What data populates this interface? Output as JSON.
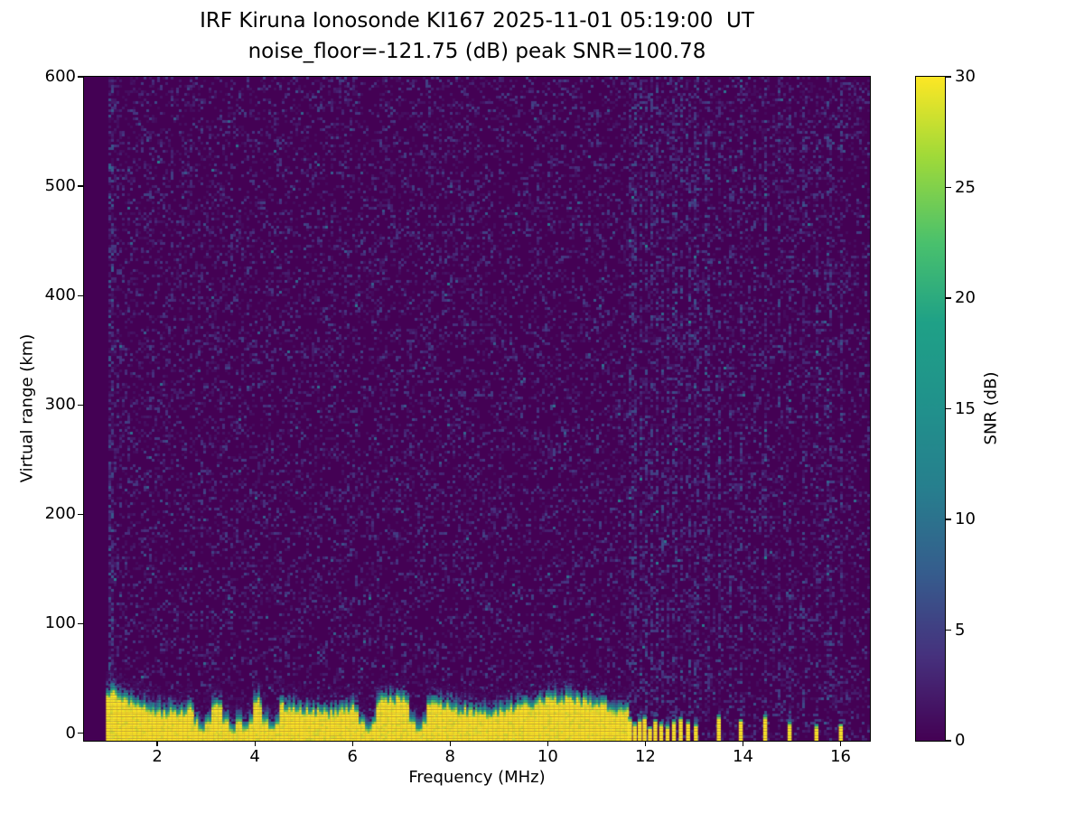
{
  "title": {
    "line1": "IRF Kiruna Ionosonde KI167 2025-11-01 05:19:00  UT",
    "line2": "noise_floor=-121.75 (dB) peak SNR=100.78"
  },
  "axes": {
    "xlabel": "Frequency (MHz)",
    "ylabel": "Virtual range (km)",
    "x_ticks": [
      2,
      4,
      6,
      8,
      10,
      12,
      14,
      16
    ],
    "y_ticks": [
      0,
      100,
      200,
      300,
      400,
      500,
      600
    ]
  },
  "colorbar": {
    "label": "SNR (dB)",
    "ticks": [
      0,
      5,
      10,
      15,
      20,
      25,
      30
    ],
    "min": 0,
    "max": 30
  },
  "chart_data": {
    "type": "heatmap",
    "title": "IRF Kiruna Ionosonde KI167 2025-11-01 05:19:00 UT",
    "subtitle": "noise_floor=-121.75 (dB) peak SNR=100.78",
    "xlabel": "Frequency (MHz)",
    "ylabel": "Virtual range (km)",
    "zlabel": "SNR (dB)",
    "x_range_mhz": [
      0.5,
      16.6
    ],
    "y_range_km": [
      -7,
      600
    ],
    "z_range_db": [
      0,
      30
    ],
    "colormap": "viridis",
    "colormap_stops": [
      {
        "t": 0.0,
        "c": "#440154"
      },
      {
        "t": 0.13,
        "c": "#46327e"
      },
      {
        "t": 0.25,
        "c": "#365c8d"
      },
      {
        "t": 0.38,
        "c": "#277f8e"
      },
      {
        "t": 0.5,
        "c": "#21918c"
      },
      {
        "t": 0.63,
        "c": "#1fa187"
      },
      {
        "t": 0.75,
        "c": "#4ac16d"
      },
      {
        "t": 0.88,
        "c": "#a0da39"
      },
      {
        "t": 1.0,
        "c": "#fde725"
      }
    ],
    "noise_floor_db": -121.75,
    "peak_snr_db": 100.78,
    "seed": 7,
    "features": {
      "background_snr_db": 0,
      "speckle_noise": {
        "density": 0.28,
        "snr_db_range": [
          1,
          12
        ]
      },
      "strong_noise_column_mhz": [
        0.95,
        1.1
      ],
      "ground_clutter": {
        "freq_start_mhz": 0.95,
        "freq_end_mhz": 11.65,
        "top_km_base": 26,
        "top_km_variation": 12,
        "saturated_snr_db": 30,
        "notch_freqs_mhz": [
          2.9,
          3.5,
          3.78,
          4.32,
          6.3,
          7.32
        ]
      },
      "discrete_echo_freqs_mhz": [
        11.68,
        11.78,
        11.88,
        11.98,
        12.09,
        12.2,
        12.32,
        12.45,
        12.58,
        12.72,
        12.87,
        13.03,
        13.5,
        13.95,
        14.45,
        14.95,
        15.5,
        16.0
      ],
      "discrete_echo_top_km": [
        6,
        16
      ],
      "noise_stripe_freqs_mhz": [
        13.25,
        13.72,
        14.2,
        14.7,
        15.22,
        15.75
      ]
    }
  }
}
